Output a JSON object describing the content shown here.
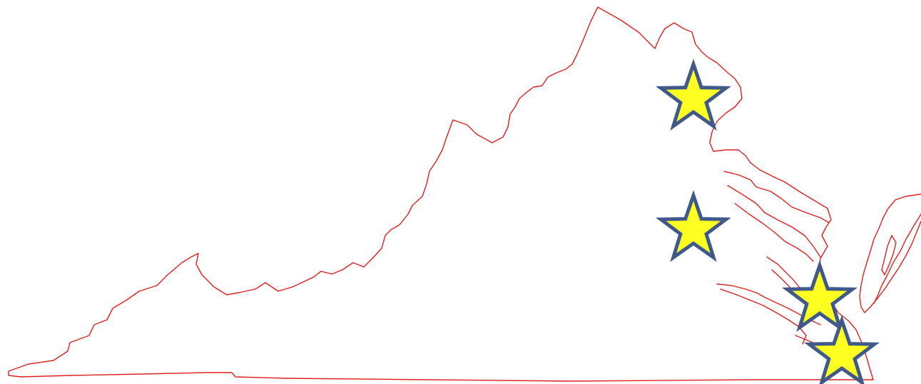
{
  "map": {
    "region": "Virginia",
    "outline_color": "#e0201e",
    "background_color": "#ffffff"
  },
  "markers": {
    "icon": "star-icon",
    "fill_color": "#ffff22",
    "stroke_color": "#3f5a8a",
    "items": [
      {
        "label": "",
        "icon": "star-icon"
      },
      {
        "label": "",
        "icon": "star-icon"
      },
      {
        "label": "",
        "icon": "star-icon"
      },
      {
        "label": "",
        "icon": "star-icon"
      }
    ]
  }
}
